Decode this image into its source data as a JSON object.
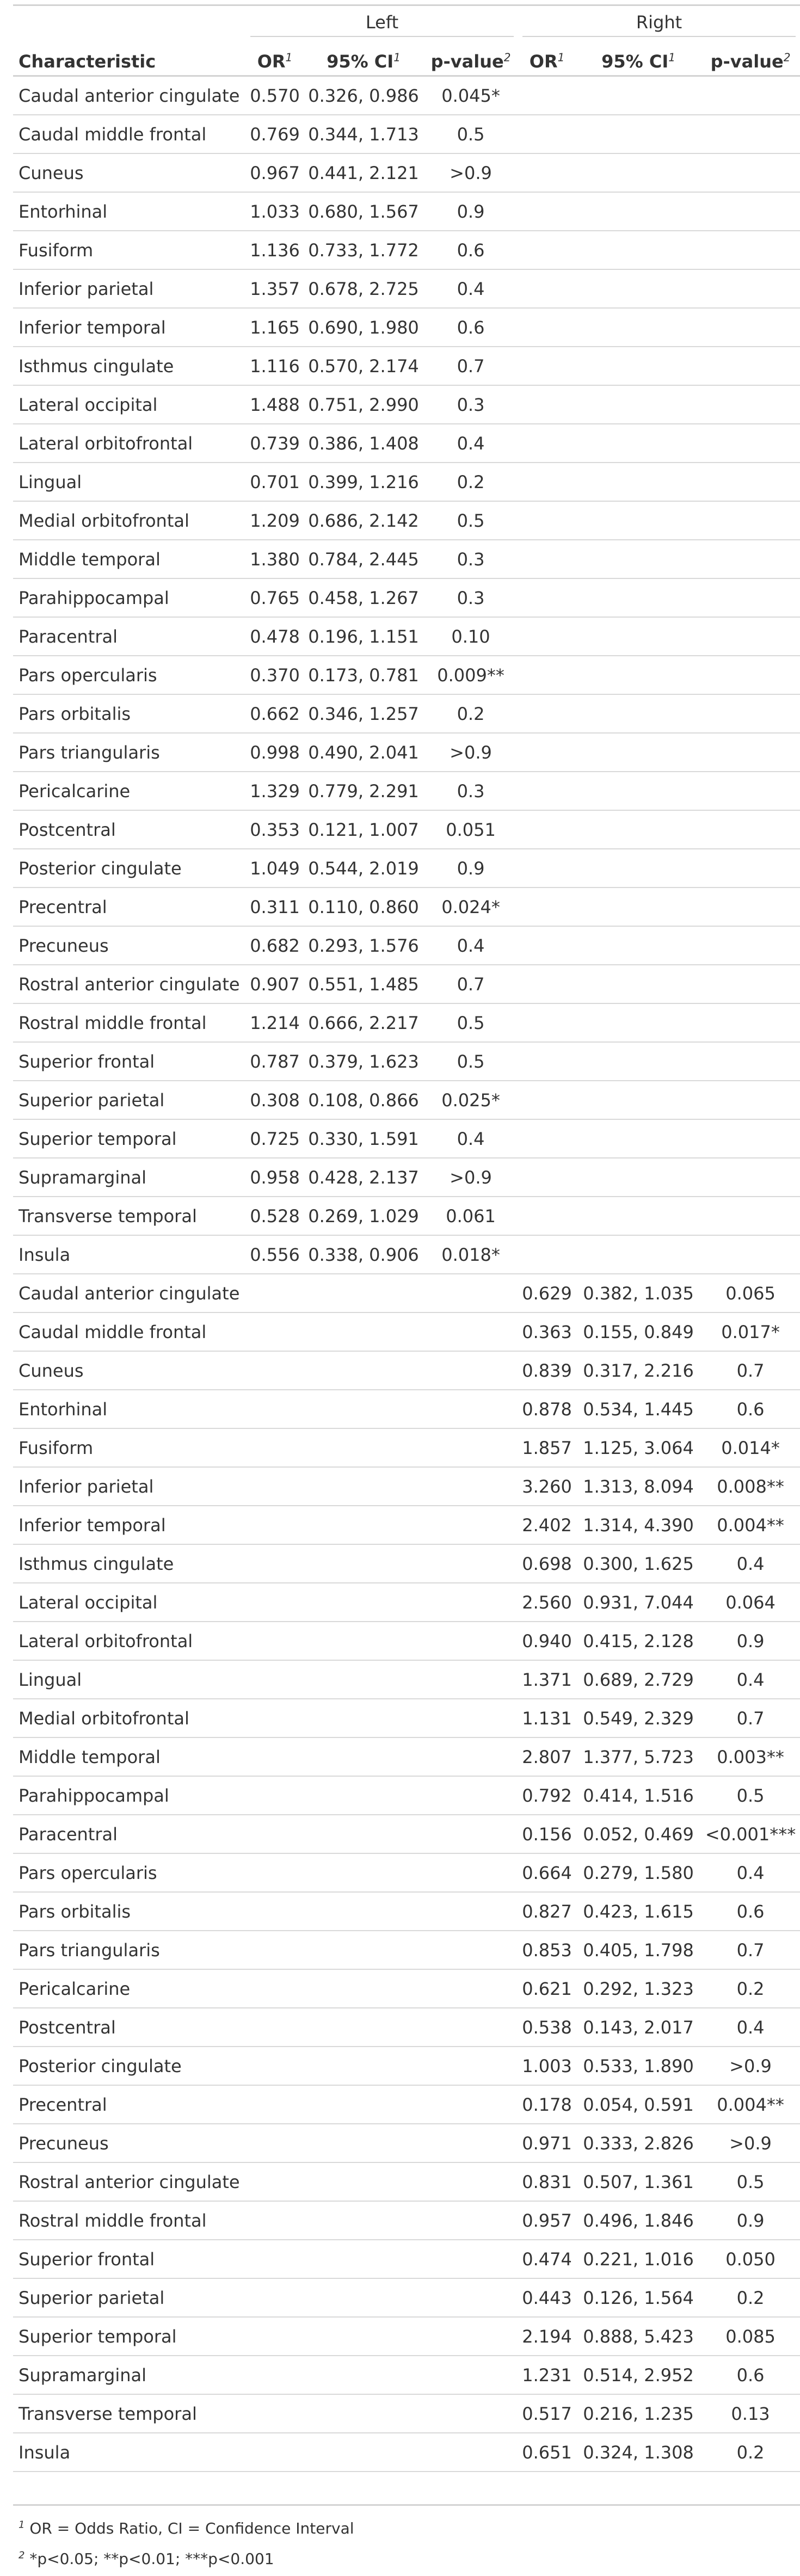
{
  "header": {
    "left_group": "Left",
    "right_group": "Right",
    "characteristic": "Characteristic",
    "or": "OR",
    "ci": "95% CI",
    "p": "p-value",
    "or_sup": "1",
    "ci_sup": "1",
    "p_sup": "2"
  },
  "left_rows": [
    {
      "name": "Caudal anterior cingulate",
      "or": "0.570",
      "ci": "0.326, 0.986",
      "p": "0.045*"
    },
    {
      "name": "Caudal middle frontal",
      "or": "0.769",
      "ci": "0.344, 1.713",
      "p": "0.5"
    },
    {
      "name": "Cuneus",
      "or": "0.967",
      "ci": "0.441, 2.121",
      "p": ">0.9"
    },
    {
      "name": "Entorhinal",
      "or": "1.033",
      "ci": "0.680, 1.567",
      "p": "0.9"
    },
    {
      "name": "Fusiform",
      "or": "1.136",
      "ci": "0.733, 1.772",
      "p": "0.6"
    },
    {
      "name": "Inferior parietal",
      "or": "1.357",
      "ci": "0.678, 2.725",
      "p": "0.4"
    },
    {
      "name": "Inferior temporal",
      "or": "1.165",
      "ci": "0.690, 1.980",
      "p": "0.6"
    },
    {
      "name": "Isthmus cingulate",
      "or": "1.116",
      "ci": "0.570, 2.174",
      "p": "0.7"
    },
    {
      "name": "Lateral occipital",
      "or": "1.488",
      "ci": "0.751, 2.990",
      "p": "0.3"
    },
    {
      "name": "Lateral orbitofrontal",
      "or": "0.739",
      "ci": "0.386, 1.408",
      "p": "0.4"
    },
    {
      "name": "Lingual",
      "or": "0.701",
      "ci": "0.399, 1.216",
      "p": "0.2"
    },
    {
      "name": "Medial orbitofrontal",
      "or": "1.209",
      "ci": "0.686, 2.142",
      "p": "0.5"
    },
    {
      "name": "Middle temporal",
      "or": "1.380",
      "ci": "0.784, 2.445",
      "p": "0.3"
    },
    {
      "name": "Parahippocampal",
      "or": "0.765",
      "ci": "0.458, 1.267",
      "p": "0.3"
    },
    {
      "name": "Paracentral",
      "or": "0.478",
      "ci": "0.196, 1.151",
      "p": "0.10"
    },
    {
      "name": "Pars opercularis",
      "or": "0.370",
      "ci": "0.173, 0.781",
      "p": "0.009**"
    },
    {
      "name": "Pars orbitalis",
      "or": "0.662",
      "ci": "0.346, 1.257",
      "p": "0.2"
    },
    {
      "name": "Pars triangularis",
      "or": "0.998",
      "ci": "0.490, 2.041",
      "p": ">0.9"
    },
    {
      "name": "Pericalcarine",
      "or": "1.329",
      "ci": "0.779, 2.291",
      "p": "0.3"
    },
    {
      "name": "Postcentral",
      "or": "0.353",
      "ci": "0.121, 1.007",
      "p": "0.051"
    },
    {
      "name": "Posterior cingulate",
      "or": "1.049",
      "ci": "0.544, 2.019",
      "p": "0.9"
    },
    {
      "name": "Precentral",
      "or": "0.311",
      "ci": "0.110, 0.860",
      "p": "0.024*"
    },
    {
      "name": "Precuneus",
      "or": "0.682",
      "ci": "0.293, 1.576",
      "p": "0.4"
    },
    {
      "name": "Rostral anterior cingulate",
      "or": "0.907",
      "ci": "0.551, 1.485",
      "p": "0.7"
    },
    {
      "name": "Rostral middle frontal",
      "or": "1.214",
      "ci": "0.666, 2.217",
      "p": "0.5"
    },
    {
      "name": "Superior frontal",
      "or": "0.787",
      "ci": "0.379, 1.623",
      "p": "0.5"
    },
    {
      "name": "Superior parietal",
      "or": "0.308",
      "ci": "0.108, 0.866",
      "p": "0.025*"
    },
    {
      "name": "Superior temporal",
      "or": "0.725",
      "ci": "0.330, 1.591",
      "p": "0.4"
    },
    {
      "name": "Supramarginal",
      "or": "0.958",
      "ci": "0.428, 2.137",
      "p": ">0.9"
    },
    {
      "name": "Transverse temporal",
      "or": "0.528",
      "ci": "0.269, 1.029",
      "p": "0.061"
    },
    {
      "name": "Insula",
      "or": "0.556",
      "ci": "0.338, 0.906",
      "p": "0.018*"
    }
  ],
  "right_rows": [
    {
      "name": "Caudal anterior cingulate",
      "or": "0.629",
      "ci": "0.382, 1.035",
      "p": "0.065"
    },
    {
      "name": "Caudal middle frontal",
      "or": "0.363",
      "ci": "0.155, 0.849",
      "p": "0.017*"
    },
    {
      "name": "Cuneus",
      "or": "0.839",
      "ci": "0.317, 2.216",
      "p": "0.7"
    },
    {
      "name": "Entorhinal",
      "or": "0.878",
      "ci": "0.534, 1.445",
      "p": "0.6"
    },
    {
      "name": "Fusiform",
      "or": "1.857",
      "ci": "1.125, 3.064",
      "p": "0.014*"
    },
    {
      "name": "Inferior parietal",
      "or": "3.260",
      "ci": "1.313, 8.094",
      "p": "0.008**"
    },
    {
      "name": "Inferior temporal",
      "or": "2.402",
      "ci": "1.314, 4.390",
      "p": "0.004**"
    },
    {
      "name": "Isthmus cingulate",
      "or": "0.698",
      "ci": "0.300, 1.625",
      "p": "0.4"
    },
    {
      "name": "Lateral occipital",
      "or": "2.560",
      "ci": "0.931, 7.044",
      "p": "0.064"
    },
    {
      "name": "Lateral orbitofrontal",
      "or": "0.940",
      "ci": "0.415, 2.128",
      "p": "0.9"
    },
    {
      "name": "Lingual",
      "or": "1.371",
      "ci": "0.689, 2.729",
      "p": "0.4"
    },
    {
      "name": "Medial orbitofrontal",
      "or": "1.131",
      "ci": "0.549, 2.329",
      "p": "0.7"
    },
    {
      "name": "Middle temporal",
      "or": "2.807",
      "ci": "1.377, 5.723",
      "p": "0.003**"
    },
    {
      "name": "Parahippocampal",
      "or": "0.792",
      "ci": "0.414, 1.516",
      "p": "0.5"
    },
    {
      "name": "Paracentral",
      "or": "0.156",
      "ci": "0.052, 0.469",
      "p": "<0.001***"
    },
    {
      "name": "Pars opercularis",
      "or": "0.664",
      "ci": "0.279, 1.580",
      "p": "0.4"
    },
    {
      "name": "Pars orbitalis",
      "or": "0.827",
      "ci": "0.423, 1.615",
      "p": "0.6"
    },
    {
      "name": "Pars triangularis",
      "or": "0.853",
      "ci": "0.405, 1.798",
      "p": "0.7"
    },
    {
      "name": "Pericalcarine",
      "or": "0.621",
      "ci": "0.292, 1.323",
      "p": "0.2"
    },
    {
      "name": "Postcentral",
      "or": "0.538",
      "ci": "0.143, 2.017",
      "p": "0.4"
    },
    {
      "name": "Posterior cingulate",
      "or": "1.003",
      "ci": "0.533, 1.890",
      "p": ">0.9"
    },
    {
      "name": "Precentral",
      "or": "0.178",
      "ci": "0.054, 0.591",
      "p": "0.004**"
    },
    {
      "name": "Precuneus",
      "or": "0.971",
      "ci": "0.333, 2.826",
      "p": ">0.9"
    },
    {
      "name": "Rostral anterior cingulate",
      "or": "0.831",
      "ci": "0.507, 1.361",
      "p": "0.5"
    },
    {
      "name": "Rostral middle frontal",
      "or": "0.957",
      "ci": "0.496, 1.846",
      "p": "0.9"
    },
    {
      "name": "Superior frontal",
      "or": "0.474",
      "ci": "0.221, 1.016",
      "p": "0.050"
    },
    {
      "name": "Superior parietal",
      "or": "0.443",
      "ci": "0.126, 1.564",
      "p": "0.2"
    },
    {
      "name": "Superior temporal",
      "or": "2.194",
      "ci": "0.888, 5.423",
      "p": "0.085"
    },
    {
      "name": "Supramarginal",
      "or": "1.231",
      "ci": "0.514, 2.952",
      "p": "0.6"
    },
    {
      "name": "Transverse temporal",
      "or": "0.517",
      "ci": "0.216, 1.235",
      "p": "0.13"
    },
    {
      "name": "Insula",
      "or": "0.651",
      "ci": "0.324, 1.308",
      "p": "0.2"
    }
  ],
  "footnotes": {
    "note1_mark": "1",
    "note1": "OR = Odds Ratio, CI = Confidence Interval",
    "note2_mark": "2",
    "note2": "*p<0.05; **p<0.01; ***p<0.001"
  }
}
